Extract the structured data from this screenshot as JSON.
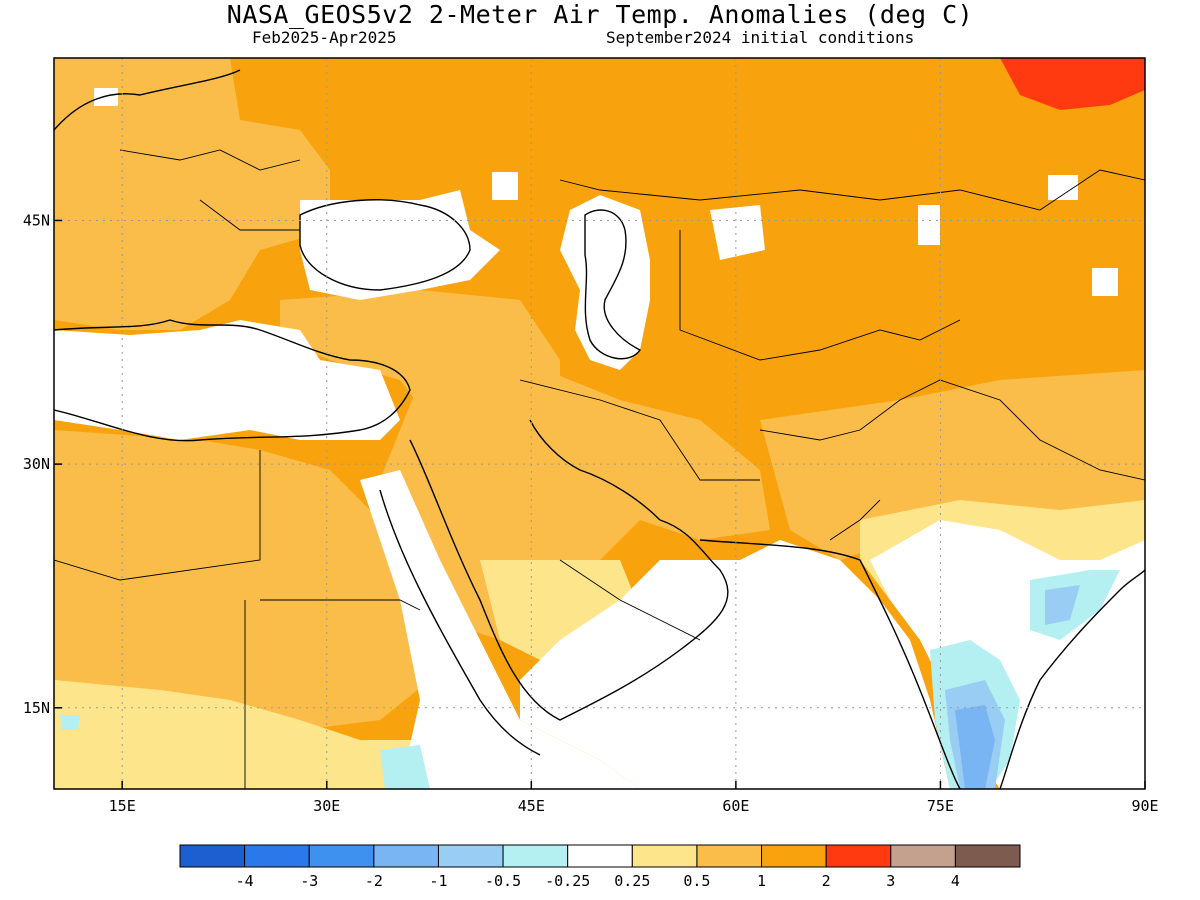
{
  "title": "NASA_GEOS5v2 2-Meter Air Temp. Anomalies (deg C)",
  "period": "Feb2025-Apr2025",
  "init": "September2024 initial conditions",
  "lat_ticks": [
    {
      "value": 45,
      "label": "45N"
    },
    {
      "value": 30,
      "label": "30N"
    },
    {
      "value": 15,
      "label": "15N"
    }
  ],
  "lon_ticks": [
    {
      "value": 15,
      "label": "15E"
    },
    {
      "value": 30,
      "label": "30E"
    },
    {
      "value": 45,
      "label": "45E"
    },
    {
      "value": 60,
      "label": "60E"
    },
    {
      "value": 75,
      "label": "75E"
    },
    {
      "value": 90,
      "label": "90E"
    }
  ],
  "extent": {
    "lon": [
      10,
      90
    ],
    "lat": [
      10,
      55
    ]
  },
  "legend": {
    "colors": [
      "#1d5fd0",
      "#2a78ea",
      "#3f91f0",
      "#78b5f2",
      "#9acdf4",
      "#b4f0f2",
      "#ffffff",
      "#fde58c",
      "#fbbd4a",
      "#f8a20e",
      "#ff3a10",
      "#c4a08e",
      "#7d5b4e"
    ],
    "labels": [
      "-4",
      "-3",
      "-2",
      "-1",
      "-0.5",
      "-0.25",
      "0.25",
      "0.5",
      "1",
      "2",
      "3",
      "4"
    ]
  },
  "colors": {
    "neutral": "#ffffff",
    "weak_warm": "#fde58c",
    "warm": "#fbbd4a",
    "warmer": "#f8a20e",
    "hot": "#ff3a10",
    "cool_1": "#b4f0f2",
    "cool_2": "#9acdf4",
    "cool_3": "#78b5f2"
  }
}
